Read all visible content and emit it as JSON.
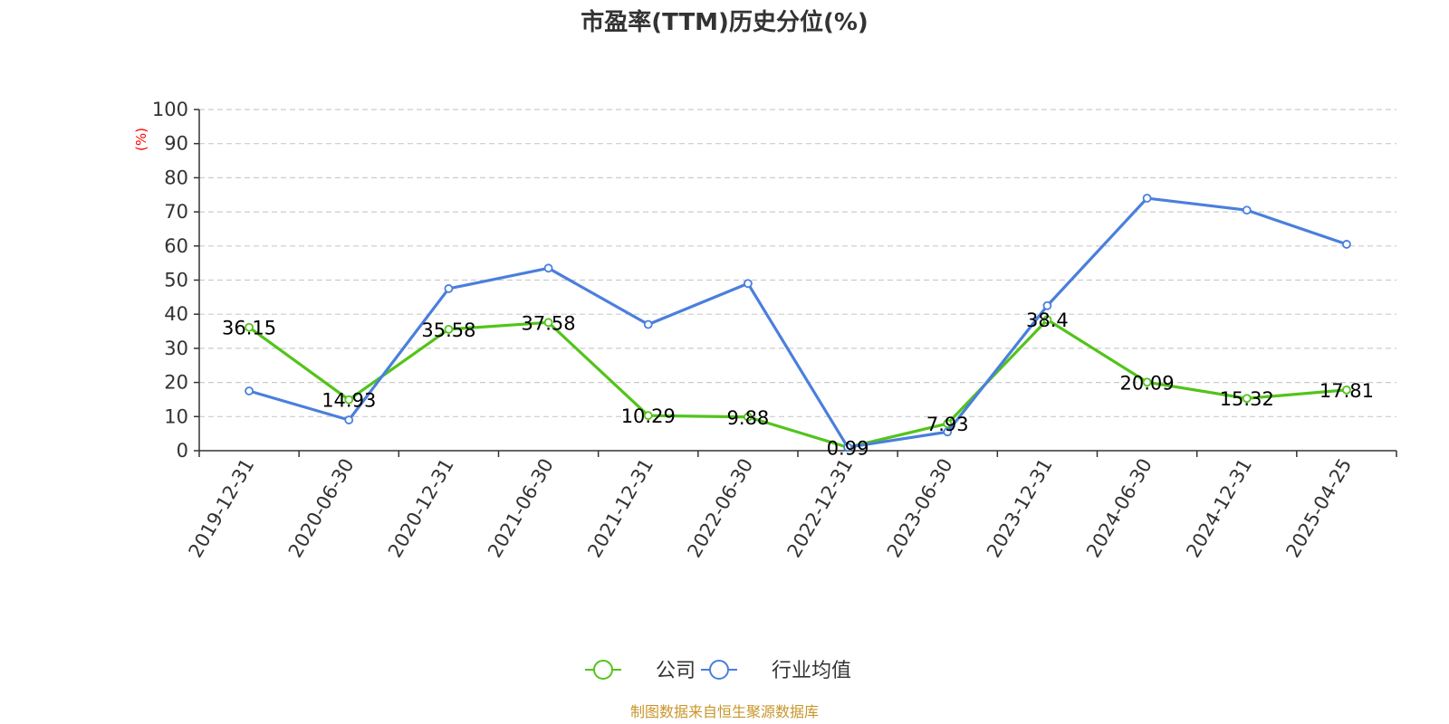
{
  "chart_data": {
    "type": "line",
    "title": "市盈率(TTM)历史分位(%)",
    "ylabel": "(%)",
    "xlabel": "",
    "ylim": [
      0,
      100
    ],
    "yticks": [
      0,
      10,
      20,
      30,
      40,
      50,
      60,
      70,
      80,
      90,
      100
    ],
    "grid": "horizontal dashed",
    "legend_position": "bottom-center",
    "categories": [
      "2019-12-31",
      "2020-06-30",
      "2020-12-31",
      "2021-06-30",
      "2021-12-31",
      "2022-06-30",
      "2022-12-31",
      "2023-06-30",
      "2023-12-31",
      "2024-06-30",
      "2024-12-31",
      "2025-04-25"
    ],
    "series": [
      {
        "name": "公司",
        "color": "#52c41a",
        "values": [
          36.15,
          14.93,
          35.58,
          37.58,
          10.29,
          9.88,
          0.99,
          7.93,
          38.4,
          20.09,
          15.32,
          17.81
        ],
        "labels": [
          "36.15",
          "14.93",
          "35.58",
          "37.58",
          "10.29",
          "9.88",
          "0.99",
          "7.93",
          "38.4",
          "20.09",
          "15.32",
          "17.81"
        ]
      },
      {
        "name": "行业均值",
        "color": "#4a7fdc",
        "values": [
          17.5,
          9.0,
          47.5,
          53.5,
          37.0,
          49.0,
          1.0,
          5.5,
          42.5,
          74.0,
          70.5,
          60.5
        ]
      }
    ],
    "source": "制图数据来自恒生聚源数据库"
  },
  "colors": {
    "axis": "#333333",
    "grid": "#cccccc",
    "unit_label": "#ff0000",
    "source_text": "#c8962a"
  }
}
